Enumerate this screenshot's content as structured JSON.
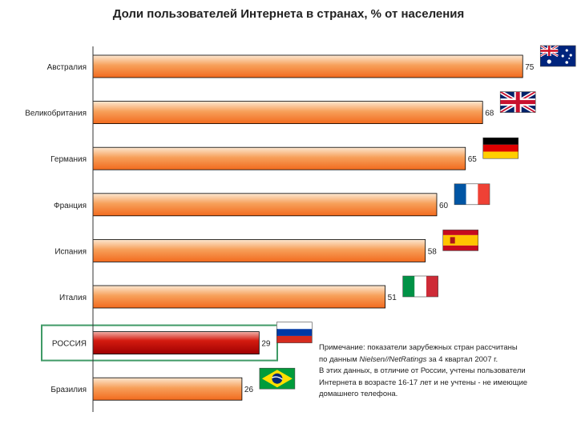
{
  "chart_data": {
    "type": "bar",
    "orientation": "horizontal",
    "title": "Доли пользователей Интернета в странах, % от населения",
    "categories": [
      "Австралия",
      "Великобритания",
      "Германия",
      "Франция",
      "Испания",
      "Италия",
      "РОССИЯ",
      "Бразилия"
    ],
    "values": [
      75,
      68,
      65,
      60,
      58,
      51,
      29,
      26
    ],
    "highlight": "РОССИЯ",
    "xlim": [
      0,
      80
    ],
    "grid": false,
    "xaxis_visible": false,
    "colors": {
      "bar_light": "#fce8d2",
      "bar_mid": "#f7a05a",
      "bar_dark": "#f26a1e",
      "highlight_light": "#f0b0a8",
      "highlight_mid": "#d41b10",
      "highlight_dark": "#9e0000",
      "highlight_frame": "#3f9a66"
    },
    "flags": [
      "australia-flag",
      "uk-flag",
      "germany-flag",
      "france-flag",
      "spain-flag",
      "italy-flag",
      "russia-flag",
      "brazil-flag"
    ]
  },
  "note": {
    "line1": "Примечание: показатели зарубежных стран рассчитаны",
    "line2_pre": "по данным ",
    "line2_source": "Nielsen//NetRatings",
    "line2_post": " за 4 квартал 2007 г.",
    "line3": "В этих данных, в отличие от России, учтены пользователи",
    "line4": "Интернета в возрасте 16-17 лет и не учтены - не имеющие",
    "line5": "домашнего телефона."
  }
}
